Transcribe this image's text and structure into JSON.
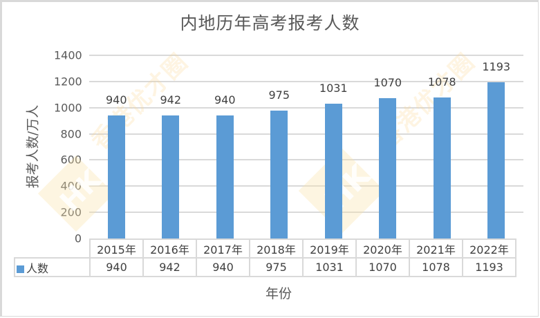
{
  "chart_data": {
    "type": "bar",
    "title": "内地历年高考报考人数",
    "xlabel": "年份",
    "ylabel": "报考人数/万人",
    "categories": [
      "2015年",
      "2016年",
      "2017年",
      "2018年",
      "2019年",
      "2020年",
      "2021年",
      "2022年"
    ],
    "series": [
      {
        "name": "人数",
        "values": [
          940,
          942,
          940,
          975,
          1031,
          1070,
          1078,
          1193
        ],
        "color": "#5b9bd5"
      }
    ],
    "ylim": [
      0,
      1400
    ],
    "yticks": [
      0,
      200,
      400,
      600,
      800,
      1000,
      1200,
      1400
    ],
    "grid": true,
    "data_labels": true,
    "data_table": true,
    "legend_position": "data-table"
  },
  "labels": {
    "title": "内地历年高考报考人数",
    "xlabel": "年份",
    "ylabel": "报考人数/万人",
    "series_name": "人数",
    "yticks": [
      "1400",
      "1200",
      "1000",
      "800",
      "600",
      "400",
      "200",
      "0"
    ],
    "categories": [
      "2015年",
      "2016年",
      "2017年",
      "2018年",
      "2019年",
      "2020年",
      "2021年",
      "2022年"
    ],
    "values": [
      "940",
      "942",
      "940",
      "975",
      "1031",
      "1070",
      "1078",
      "1193"
    ]
  },
  "watermark": {
    "text": "香港优才圈",
    "logo": "HK"
  }
}
